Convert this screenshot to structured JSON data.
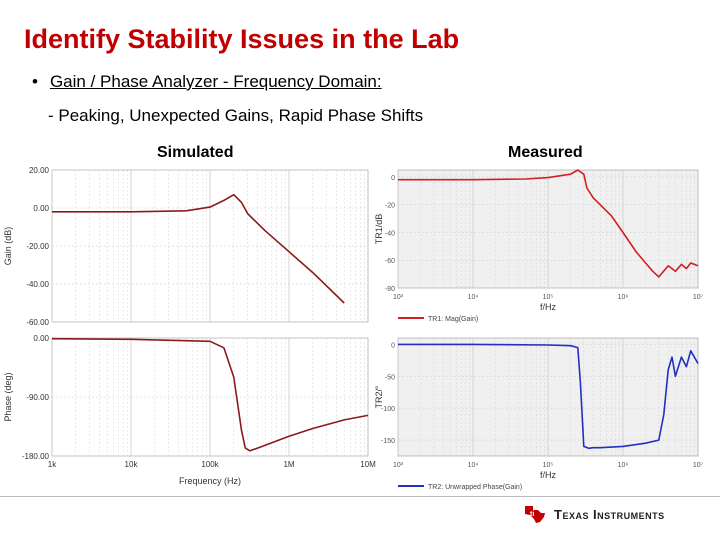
{
  "slide": {
    "title": "Identify Stability Issues in the Lab",
    "bullet": "Gain / Phase Analyzer - Frequency Domain:",
    "sub_bullet": "- Peaking, Unexpected Gains, Rapid Phase Shifts",
    "label_simulated": "Simulated",
    "label_measured": "Measured",
    "logo_text": "Texas Instruments",
    "logo_icon": "ti-state-icon"
  },
  "chart_data": [
    {
      "id": "sim-gain",
      "type": "line",
      "ylabel": "Gain (dB)",
      "ylim": [
        -60,
        20
      ],
      "yticks": [
        20,
        0,
        -20,
        -40,
        -60
      ],
      "ytick_labels": [
        "20.00",
        "0.00",
        "-20.00",
        "-40.00",
        "-60.00"
      ],
      "xscale": "log",
      "xlim": [
        1000,
        10000000
      ],
      "color": "#8b1a1a",
      "series": [
        {
          "name": "Gain",
          "x": [
            1000,
            10000,
            50000,
            100000,
            150000,
            200000,
            250000,
            300000,
            500000,
            1000000,
            2000000,
            5000000
          ],
          "y": [
            -2,
            -2,
            -1.5,
            0.5,
            4,
            7,
            3,
            -3,
            -12,
            -23,
            -34,
            -50
          ]
        }
      ]
    },
    {
      "id": "sim-phase",
      "type": "line",
      "ylabel": "Phase (deg)",
      "xlabel": "Frequency (Hz)",
      "ylim": [
        -180,
        0
      ],
      "yticks": [
        0,
        -90,
        -180
      ],
      "ytick_labels": [
        "0.00",
        "-90.00",
        "-180.00"
      ],
      "xscale": "log",
      "xlim": [
        1000,
        10000000
      ],
      "xticks": [
        1000,
        10000,
        100000,
        1000000,
        10000000
      ],
      "xtick_labels": [
        "1k",
        "10k",
        "100k",
        "1M",
        "10M"
      ],
      "color": "#8b1a1a",
      "series": [
        {
          "name": "Phase",
          "x": [
            1000,
            10000,
            100000,
            150000,
            200000,
            250000,
            280000,
            320000,
            400000,
            600000,
            1000000,
            2000000,
            5000000,
            10000000
          ],
          "y": [
            -1,
            -2,
            -5,
            -15,
            -60,
            -140,
            -168,
            -172,
            -168,
            -160,
            -150,
            -138,
            -125,
            -118
          ]
        }
      ]
    },
    {
      "id": "meas-gain",
      "type": "line",
      "ylabel": "TR1/dB",
      "xlabel": "f/Hz",
      "ylim": [
        -80,
        5
      ],
      "yticks": [
        0,
        -20,
        -40,
        -60,
        -80
      ],
      "ytick_labels": [
        "0",
        "-20",
        "-40",
        "-60",
        "-80"
      ],
      "xscale": "log",
      "xlim": [
        1000,
        10000000
      ],
      "xtick_labels": [
        "10³",
        "10⁴",
        "10⁵",
        "10⁶",
        "10⁷"
      ],
      "legend": "TR1: Mag(Gain)",
      "color": "#d02020",
      "series": [
        {
          "name": "TR1: Mag(Gain)",
          "x": [
            1000,
            10000,
            50000,
            100000,
            200000,
            250000,
            300000,
            330000,
            400000,
            700000,
            1000000,
            1500000,
            2000000,
            2500000,
            3000000,
            4000000,
            5000000,
            6000000,
            7000000,
            8000000,
            10000000
          ],
          "y": [
            -2,
            -2,
            -1.5,
            -0.5,
            2,
            5,
            2,
            -8,
            -15,
            -28,
            -40,
            -54,
            -62,
            -68,
            -72,
            -64,
            -68,
            -63,
            -66,
            -62,
            -64
          ]
        }
      ]
    },
    {
      "id": "meas-phase",
      "type": "line",
      "ylabel": "TR2/°",
      "xlabel": "f/Hz",
      "ylim": [
        -175,
        10
      ],
      "yticks": [
        0,
        -50,
        -100,
        -150
      ],
      "ytick_labels": [
        "0",
        "-50",
        "-100",
        "-150"
      ],
      "xscale": "log",
      "xlim": [
        1000,
        10000000
      ],
      "xtick_labels": [
        "10³",
        "10⁴",
        "10⁵",
        "10⁶",
        "10⁷"
      ],
      "legend": "TR2: Unwrapped Phase(Gain)",
      "color": "#2030c0",
      "series": [
        {
          "name": "TR2: Unwrapped Phase(Gain)",
          "x": [
            1000,
            10000,
            100000,
            200000,
            250000,
            270000,
            300000,
            350000,
            400000,
            500000,
            1000000,
            2000000,
            3000000,
            3500000,
            4000000,
            4500000,
            5000000,
            6000000,
            7000000,
            8000000,
            10000000
          ],
          "y": [
            0,
            0,
            -1,
            -2,
            -5,
            -60,
            -160,
            -163,
            -162,
            -162,
            -160,
            -155,
            -150,
            -110,
            -40,
            -20,
            -50,
            -20,
            -35,
            -10,
            -30
          ]
        }
      ]
    }
  ]
}
